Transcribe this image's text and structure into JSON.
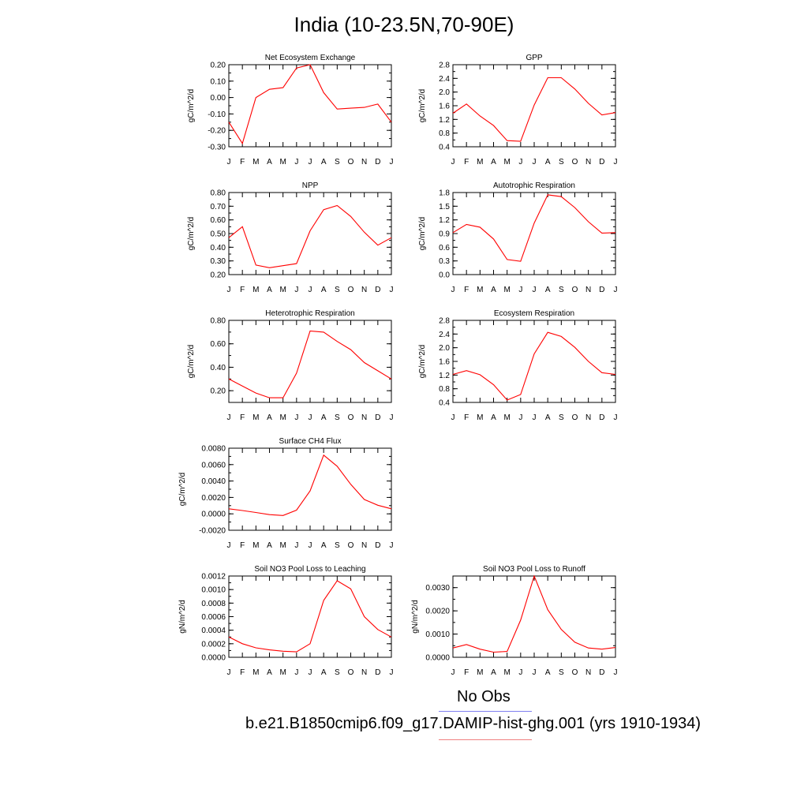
{
  "title": "India (10-23.5N,70-90E)",
  "colors": {
    "model_line": "#ff0000",
    "obs_legend": "#8080f0",
    "model_legend": "#f08080",
    "axis": "#000000"
  },
  "legend": {
    "obs_label": "No Obs",
    "model_label": "b.e21.B1850cmip6.f09_g17.DAMIP-hist-ghg.001 (yrs 1910-1934)"
  },
  "chart_data": [
    {
      "type": "line",
      "title": "Net Ecosystem Exchange",
      "ylabel": "gC/m^2/d",
      "xlabel": "",
      "categories": [
        "J",
        "F",
        "M",
        "A",
        "M",
        "J",
        "J",
        "A",
        "S",
        "O",
        "N",
        "D",
        "J"
      ],
      "ylim": [
        -0.3,
        0.2
      ],
      "yticks": [
        -0.3,
        -0.2,
        -0.1,
        0.0,
        0.1,
        0.2
      ],
      "ytick_labels": [
        "-0.30",
        "-0.20",
        "-0.10",
        "0.00",
        "0.10",
        "0.20"
      ],
      "series": [
        {
          "values": [
            -0.15,
            -0.28,
            0.0,
            0.05,
            0.06,
            0.18,
            0.2,
            0.03,
            -0.07,
            -0.065,
            -0.06,
            -0.04,
            -0.15
          ]
        }
      ]
    },
    {
      "type": "line",
      "title": "GPP",
      "ylabel": "gC/m^2/d",
      "xlabel": "",
      "categories": [
        "J",
        "F",
        "M",
        "A",
        "M",
        "J",
        "J",
        "A",
        "S",
        "O",
        "N",
        "D",
        "J"
      ],
      "ylim": [
        0.4,
        2.8
      ],
      "yticks": [
        0.4,
        0.8,
        1.2,
        1.6,
        2.0,
        2.4,
        2.8
      ],
      "ytick_labels": [
        "0.4",
        "0.8",
        "1.2",
        "1.6",
        "2.0",
        "2.4",
        "2.8"
      ],
      "series": [
        {
          "values": [
            1.38,
            1.65,
            1.3,
            1.02,
            0.58,
            0.56,
            1.62,
            2.42,
            2.42,
            2.09,
            1.67,
            1.33,
            1.4
          ]
        }
      ]
    },
    {
      "type": "line",
      "title": "NPP",
      "ylabel": "gC/m^2/d",
      "xlabel": "",
      "categories": [
        "J",
        "F",
        "M",
        "A",
        "M",
        "J",
        "J",
        "A",
        "S",
        "O",
        "N",
        "D",
        "J"
      ],
      "ylim": [
        0.2,
        0.8
      ],
      "yticks": [
        0.2,
        0.3,
        0.4,
        0.5,
        0.6,
        0.7,
        0.8
      ],
      "ytick_labels": [
        "0.20",
        "0.30",
        "0.40",
        "0.50",
        "0.60",
        "0.70",
        "0.80"
      ],
      "series": [
        {
          "values": [
            0.47,
            0.55,
            0.27,
            0.25,
            0.265,
            0.28,
            0.52,
            0.675,
            0.705,
            0.625,
            0.51,
            0.415,
            0.47
          ]
        }
      ]
    },
    {
      "type": "line",
      "title": "Autotrophic Respiration",
      "ylabel": "gC/m^2/d",
      "xlabel": "",
      "categories": [
        "J",
        "F",
        "M",
        "A",
        "M",
        "J",
        "J",
        "A",
        "S",
        "O",
        "N",
        "D",
        "J"
      ],
      "ylim": [
        0.0,
        1.8
      ],
      "yticks": [
        0.0,
        0.3,
        0.6,
        0.9,
        1.2,
        1.5,
        1.8
      ],
      "ytick_labels": [
        "0.0",
        "0.3",
        "0.6",
        "0.9",
        "1.2",
        "1.5",
        "1.8"
      ],
      "series": [
        {
          "values": [
            0.92,
            1.1,
            1.04,
            0.78,
            0.33,
            0.29,
            1.13,
            1.75,
            1.71,
            1.47,
            1.16,
            0.91,
            0.92
          ]
        }
      ]
    },
    {
      "type": "line",
      "title": "Heterotrophic Respiration",
      "ylabel": "gC/m^2/d",
      "xlabel": "",
      "categories": [
        "J",
        "F",
        "M",
        "A",
        "M",
        "J",
        "J",
        "A",
        "S",
        "O",
        "N",
        "D",
        "J"
      ],
      "ylim": [
        0.1,
        0.8
      ],
      "yticks": [
        0.2,
        0.4,
        0.6,
        0.8
      ],
      "ytick_labels": [
        "0.20",
        "0.40",
        "0.60",
        "0.80"
      ],
      "series": [
        {
          "values": [
            0.3,
            0.24,
            0.18,
            0.14,
            0.14,
            0.35,
            0.71,
            0.7,
            0.62,
            0.55,
            0.44,
            0.37,
            0.3
          ]
        }
      ]
    },
    {
      "type": "line",
      "title": "Ecosystem Respiration",
      "ylabel": "gC/m^2/d",
      "xlabel": "",
      "categories": [
        "J",
        "F",
        "M",
        "A",
        "M",
        "J",
        "J",
        "A",
        "S",
        "O",
        "N",
        "D",
        "J"
      ],
      "ylim": [
        0.4,
        2.8
      ],
      "yticks": [
        0.4,
        0.8,
        1.2,
        1.6,
        2.0,
        2.4,
        2.8
      ],
      "ytick_labels": [
        "0.4",
        "0.8",
        "1.2",
        "1.6",
        "2.0",
        "2.4",
        "2.8"
      ],
      "series": [
        {
          "values": [
            1.22,
            1.33,
            1.21,
            0.92,
            0.47,
            0.63,
            1.82,
            2.45,
            2.33,
            2.01,
            1.6,
            1.27,
            1.22
          ]
        }
      ]
    },
    {
      "type": "line",
      "title": "Surface CH4 Flux",
      "ylabel": "gC/m^2/d",
      "xlabel": "",
      "categories": [
        "J",
        "F",
        "M",
        "A",
        "M",
        "J",
        "J",
        "A",
        "S",
        "O",
        "N",
        "D",
        "J"
      ],
      "ylim": [
        -0.002,
        0.008
      ],
      "yticks": [
        -0.002,
        0.0,
        0.002,
        0.004,
        0.006,
        0.008
      ],
      "ytick_labels": [
        "-0.0020",
        "0.0000",
        "0.0020",
        "0.0040",
        "0.0060",
        "0.0080"
      ],
      "series": [
        {
          "values": [
            0.00062,
            0.0004,
            0.00016,
            -0.0001,
            -0.0002,
            0.00045,
            0.0028,
            0.00715,
            0.0058,
            0.0036,
            0.00175,
            0.00105,
            0.00062
          ]
        }
      ]
    },
    {
      "type": "line",
      "title": "Soil NO3 Pool Loss to Leaching",
      "ylabel": "gN/m^2/d",
      "xlabel": "",
      "categories": [
        "J",
        "F",
        "M",
        "A",
        "M",
        "J",
        "J",
        "A",
        "S",
        "O",
        "N",
        "D",
        "J"
      ],
      "ylim": [
        0.0,
        0.0012
      ],
      "yticks": [
        0.0,
        0.0002,
        0.0004,
        0.0006,
        0.0008,
        0.001,
        0.0012
      ],
      "ytick_labels": [
        "0.0000",
        "0.0002",
        "0.0004",
        "0.0006",
        "0.0008",
        "0.0010",
        "0.0012"
      ],
      "series": [
        {
          "values": [
            0.0003,
            0.0002,
            0.00014,
            0.00011,
            9e-05,
            8e-05,
            0.0002,
            0.00084,
            0.00113,
            0.00101,
            0.0006,
            0.00041,
            0.0003
          ]
        }
      ]
    },
    {
      "type": "line",
      "title": "Soil NO3 Pool Loss to Runoff",
      "ylabel": "gN/m^2/d",
      "xlabel": "",
      "categories": [
        "J",
        "F",
        "M",
        "A",
        "M",
        "J",
        "J",
        "A",
        "S",
        "O",
        "N",
        "D",
        "J"
      ],
      "ylim": [
        0.0,
        0.0035
      ],
      "yticks": [
        0.0,
        0.001,
        0.002,
        0.003
      ],
      "ytick_labels": [
        "0.0000",
        "0.0010",
        "0.0020",
        "0.0030"
      ],
      "series": [
        {
          "values": [
            0.0004,
            0.00055,
            0.00035,
            0.00022,
            0.00025,
            0.0016,
            0.0035,
            0.00205,
            0.0012,
            0.00065,
            0.0004,
            0.00035,
            0.00042
          ]
        }
      ]
    }
  ]
}
